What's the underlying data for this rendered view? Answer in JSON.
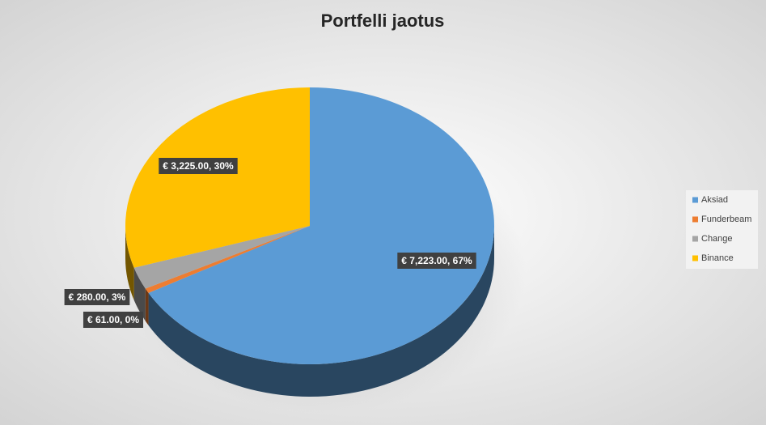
{
  "chart_data": {
    "type": "pie",
    "title": "Portfelli jaotus",
    "categories": [
      "Aksiad",
      "Funderbeam",
      "Change",
      "Binance"
    ],
    "values": [
      7223,
      61,
      280,
      3225
    ],
    "value_labels": [
      "€ 7,223.00, 67%",
      "€ 61.00, 0%",
      "€ 280.00, 3%",
      "€ 3,225.00, 30%"
    ],
    "colors": [
      "#5b9bd5",
      "#ed7d31",
      "#a5a5a5",
      "#ffc000"
    ],
    "legend": "right"
  }
}
